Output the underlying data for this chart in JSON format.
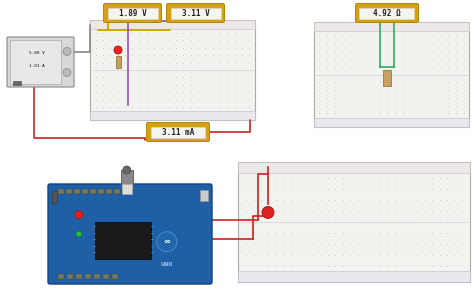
{
  "psu_label1": "5.00 V",
  "psu_label2": "1.01 A",
  "meter_189": "1.89 V",
  "meter_311v": "3.11 V",
  "meter_311ma": "3.11 mA",
  "meter_492": "4.92 Ω",
  "wire_red": "#cc2222",
  "wire_black": "#555555",
  "wire_gray": "#888888",
  "wire_yellow": "#ccaa00",
  "wire_purple": "#9955aa",
  "wire_green": "#33aa66",
  "arduino_blue": "#1f5fa6",
  "arduino_dark": "#164080",
  "bg": "#ffffff",
  "bb_face": "#f2f2ee",
  "bb_border": "#aaaaaa",
  "bb_rail_top": "#fff0f0",
  "bb_rail_bot": "#f0f0ff",
  "meter_gold": "#d4a017",
  "meter_inner": "#f5f5f0",
  "psu_face": "#d8d8d8",
  "psu_knob": "#bbbbbb"
}
